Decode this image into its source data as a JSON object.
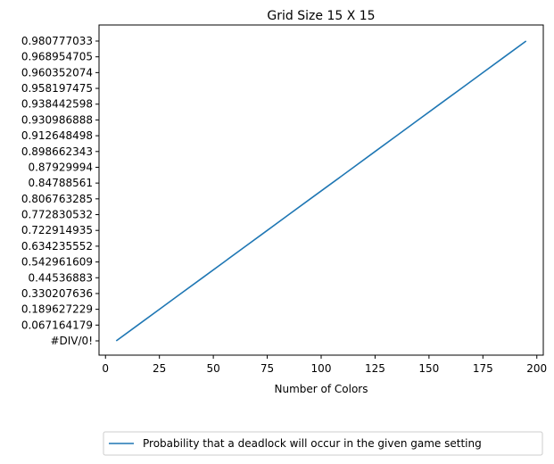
{
  "chart_data": {
    "type": "line",
    "title": "Grid Size 15 X 15",
    "xlabel": "Number of Colors",
    "ylabel": "",
    "xlim": [
      -3,
      203
    ],
    "x_ticks": [
      0,
      25,
      50,
      75,
      100,
      125,
      150,
      175,
      200
    ],
    "y_categories": [
      "#DIV/0!",
      "0.067164179",
      "0.189627229",
      "0.330207636",
      "0.44536883",
      "0.542961609",
      "0.634235552",
      "0.722914935",
      "0.772830532",
      "0.806763285",
      "0.84788561",
      "0.87929994",
      "0.898662343",
      "0.912648498",
      "0.930986888",
      "0.938442598",
      "0.958197475",
      "0.960352074",
      "0.968954705",
      "0.980777033"
    ],
    "series": [
      {
        "name": "Probability that a deadlock will occur in the given game setting",
        "color": "#1f77b4",
        "x": [
          5,
          15,
          25,
          35,
          45,
          55,
          65,
          75,
          85,
          95,
          105,
          115,
          125,
          135,
          145,
          155,
          165,
          175,
          185,
          195
        ],
        "y": [
          "#DIV/0!",
          "0.067164179",
          "0.189627229",
          "0.330207636",
          "0.44536883",
          "0.542961609",
          "0.634235552",
          "0.722914935",
          "0.772830532",
          "0.806763285",
          "0.84788561",
          "0.87929994",
          "0.898662343",
          "0.912648498",
          "0.930986888",
          "0.938442598",
          "0.958197475",
          "0.960352074",
          "0.968954705",
          "0.980777033"
        ]
      }
    ],
    "grid": false,
    "legend_position": "bottom-center, outside plot"
  }
}
